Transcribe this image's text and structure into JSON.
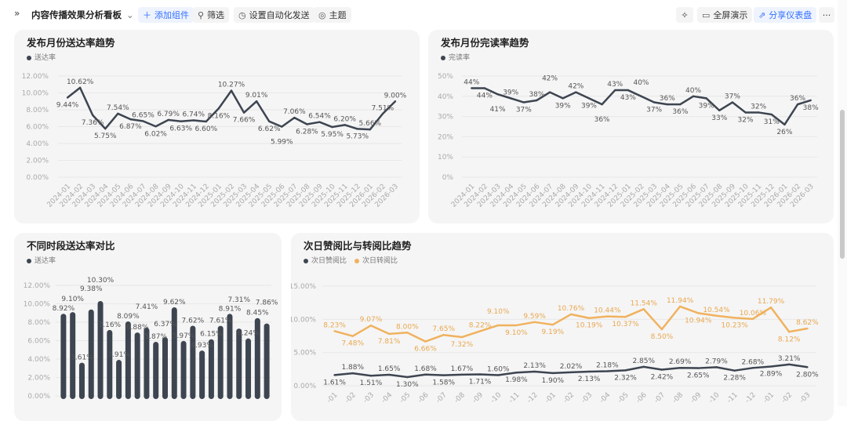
{
  "toolbar": {
    "title": "内容传播效果分析看板",
    "add_component": "添加组件",
    "filter": "筛选",
    "auto_send": "设置自动化发送",
    "theme": "主题",
    "fullscreen": "全屏演示",
    "share": "分享仪表盘",
    "more": "···",
    "accent": "#3370ff"
  },
  "chart_data": [
    {
      "type": "line",
      "title": "发布月份送达率趋势",
      "legend": [
        {
          "name": "送达率",
          "color": "#3d4550"
        }
      ],
      "yticks": [
        "0.00%",
        "2.00%",
        "4.00%",
        "6.00%",
        "8.00%",
        "10.00%",
        "12.00%"
      ],
      "ylim": [
        0,
        12
      ],
      "unit": "%",
      "decimals": 2,
      "categories": [
        "2024-01",
        "2024-02",
        "2024-03",
        "2024-04",
        "2024-05",
        "2024-06",
        "2024-07",
        "2024-08",
        "2024-09",
        "2024-10",
        "2024-11",
        "2024-12",
        "2025-01",
        "2025-02",
        "2025-03",
        "2025-04",
        "2025-05",
        "2025-06",
        "2025-07",
        "2025-08",
        "2025-09",
        "2025-10",
        "2025-11",
        "2025-12",
        "2026-01",
        "2026-02",
        "2026-03"
      ],
      "series": [
        {
          "name": "送达率",
          "color": "#3d4550",
          "values": [
            9.44,
            10.62,
            7.36,
            5.75,
            7.54,
            6.87,
            6.65,
            6.02,
            6.79,
            6.63,
            6.74,
            6.6,
            8.16,
            10.27,
            7.66,
            9.01,
            6.62,
            5.99,
            7.06,
            6.28,
            6.54,
            5.95,
            6.2,
            5.73,
            5.66,
            7.51,
            9.0
          ]
        }
      ]
    },
    {
      "type": "line",
      "title": "发布月份完读率趋势",
      "legend": [
        {
          "name": "完读率",
          "color": "#3d4550"
        }
      ],
      "yticks": [
        "0%",
        "10%",
        "20%",
        "30%",
        "40%",
        "50%"
      ],
      "ylim": [
        0,
        50
      ],
      "unit": "%",
      "decimals": 0,
      "categories": [
        "2024-01",
        "2024-02",
        "2024-03",
        "2024-04",
        "2024-05",
        "2024-06",
        "2024-07",
        "2024-08",
        "2024-09",
        "2024-10",
        "2024-11",
        "2024-12",
        "2025-01",
        "2025-02",
        "2025-03",
        "2025-04",
        "2025-05",
        "2025-06",
        "2025-07",
        "2025-08",
        "2025-09",
        "2025-10",
        "2025-11",
        "2025-12",
        "2026-01",
        "2026-02",
        "2026-03"
      ],
      "series": [
        {
          "name": "完读率",
          "color": "#3d4550",
          "values": [
            44,
            44,
            41,
            39,
            37,
            38,
            42,
            39,
            42,
            39,
            36,
            43,
            43,
            40,
            37,
            36,
            36,
            40,
            39,
            33,
            37,
            32,
            32,
            31,
            26,
            36,
            38
          ]
        }
      ]
    },
    {
      "type": "bar",
      "title": "不同时段送达率对比",
      "legend": [
        {
          "name": "送达率",
          "color": "#3d4550"
        }
      ],
      "yticks": [
        "0.00%",
        "2.00%",
        "4.00%",
        "6.00%",
        "8.00%",
        "10.00%",
        "12.00%"
      ],
      "ylim": [
        0,
        12
      ],
      "unit": "%",
      "decimals": 2,
      "series": [
        {
          "name": "送达率",
          "color": "#3d4550",
          "values": [
            8.92,
            9.1,
            3.61,
            9.38,
            10.3,
            7.16,
            3.91,
            8.09,
            6.88,
            7.41,
            5.87,
            6.37,
            9.62,
            5.97,
            7.62,
            4.93,
            6.15,
            7.61,
            8.91,
            7.31,
            6.24,
            8.45,
            7.86
          ]
        }
      ]
    },
    {
      "type": "line",
      "title": "次日赞阅比与转阅比趋势",
      "legend": [
        {
          "name": "次日赞阅比",
          "color": "#3d4550"
        },
        {
          "name": "次日转阅比",
          "color": "#f0b25e"
        }
      ],
      "yticks": [
        "0.00%",
        "5.00%",
        "10.00%",
        "15.00%"
      ],
      "ylim": [
        0,
        15
      ],
      "unit": "%",
      "decimals": 2,
      "categories": [
        "-01",
        "-02",
        "-03",
        "-04",
        "-05",
        "-06",
        "-07",
        "-08",
        "-09",
        "-10",
        "-11",
        "-12",
        "-01",
        "-02",
        "-03",
        "-04",
        "-05",
        "-06",
        "-07",
        "-08",
        "-09",
        "-10",
        "-11",
        "-12",
        "-01",
        "-02",
        "-03"
      ],
      "series": [
        {
          "name": "次日赞阅比",
          "color": "#3d4550",
          "values": [
            1.61,
            1.88,
            1.51,
            1.65,
            1.3,
            1.68,
            1.58,
            1.67,
            1.71,
            1.6,
            1.98,
            2.13,
            1.9,
            2.02,
            2.13,
            2.18,
            2.32,
            2.85,
            2.42,
            2.69,
            2.65,
            2.79,
            2.28,
            2.68,
            2.89,
            3.21,
            2.8
          ]
        },
        {
          "name": "次日转阅比",
          "color": "#f0b25e",
          "values": [
            8.23,
            7.48,
            9.07,
            7.81,
            8.0,
            6.66,
            7.65,
            7.32,
            8.22,
            9.1,
            9.1,
            9.59,
            9.19,
            10.76,
            10.19,
            10.44,
            10.37,
            11.54,
            8.5,
            11.94,
            10.94,
            10.54,
            10.23,
            10.06,
            11.79,
            8.12,
            8.62
          ]
        }
      ]
    }
  ]
}
